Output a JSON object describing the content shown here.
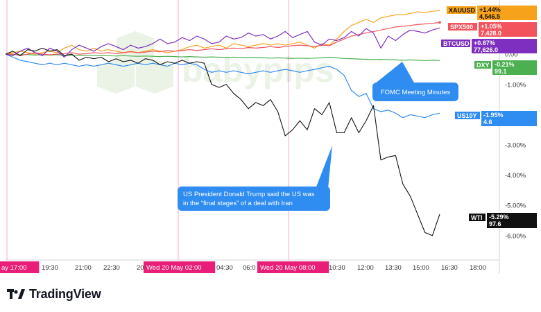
{
  "watermark": "babypips",
  "brand": "TradingView",
  "colors": {
    "xauusd": "#f7a21b",
    "spx500": "#f2535d",
    "btcusd": "#7e2fbf",
    "dxy": "#4caf50",
    "us10y": "#2f8cf0",
    "wti": "#111111",
    "session_marker": "#e91e78",
    "annotation": "#2f8cf0"
  },
  "chart_data": {
    "type": "line",
    "ylabel": "",
    "y_unit": "%",
    "y_ticks": [
      "0.00",
      "-1.00%",
      "-2.00%",
      "-3.00%",
      "-4.00%",
      "-5.00%",
      "-6.00%"
    ],
    "ylim": [
      -6.6,
      1.7
    ],
    "x_tick_labels": [
      "ay  17:00",
      "19:30",
      "21:00",
      "22:30",
      "20",
      "Wed 20 May  02:00",
      "04:30",
      "06:0",
      "Wed 20 May  08:00",
      "10:30",
      "12:00",
      "13:30",
      "15:00",
      "16:30",
      "18:00"
    ],
    "highlighted_x_labels": [
      "ay  17:00",
      "Wed 20 May  02:00",
      "Wed 20 May  08:00"
    ],
    "n_points": 60,
    "grid": false,
    "legend": "right-axis labels",
    "series": [
      {
        "name": "XAUUSD",
        "change": "+1.44%",
        "last": "4,546.5",
        "color_key": "xauusd",
        "values": [
          0,
          0.05,
          0.1,
          0.05,
          0,
          0.05,
          0.1,
          0.05,
          0.2,
          0.3,
          0.15,
          0.1,
          0.2,
          0.1,
          0.15,
          0.1,
          0.05,
          0.1,
          0.05,
          0.1,
          0.15,
          0.1,
          0.05,
          0.1,
          0.15,
          0.25,
          0.3,
          0.2,
          0.25,
          0.3,
          0.2,
          0.35,
          0.3,
          0.25,
          0.3,
          0.35,
          0.3,
          0.35,
          0.3,
          0.35,
          0.4,
          0.3,
          0.2,
          0.35,
          0.3,
          0.5,
          0.75,
          0.95,
          1.05,
          1.15,
          1.05,
          1.2,
          1.25,
          1.3,
          1.3,
          1.35,
          1.4,
          1.38,
          1.42,
          1.44
        ]
      },
      {
        "name": "SPX500",
        "change": "+1.05%",
        "last": "7,428.0",
        "color_key": "spx500",
        "values": [
          0,
          0,
          -0.05,
          0,
          0.05,
          0,
          -0.02,
          0,
          0.02,
          0.05,
          0,
          0.02,
          0.05,
          0.03,
          0.05,
          0.02,
          0.05,
          0.08,
          0.05,
          0.07,
          0.1,
          0.08,
          0.12,
          0.1,
          0.12,
          0.15,
          0.12,
          0.15,
          0.18,
          0.15,
          0.18,
          0.2,
          0.18,
          0.22,
          0.2,
          0.22,
          0.25,
          0.22,
          0.25,
          0.28,
          0.3,
          0.28,
          0.25,
          0.3,
          0.28,
          0.4,
          0.5,
          0.6,
          0.65,
          0.7,
          0.75,
          0.8,
          0.85,
          0.9,
          0.92,
          0.95,
          0.98,
          1.0,
          1.02,
          1.05
        ]
      },
      {
        "name": "BTCUSD",
        "change": "+0.87%",
        "last": "77,626.0",
        "color_key": "btcusd",
        "values": [
          0,
          -0.05,
          0.1,
          0.2,
          0.05,
          -0.05,
          0.2,
          0.1,
          -0.1,
          0.15,
          0.3,
          0.2,
          0.1,
          0.25,
          0.35,
          0.25,
          0.15,
          0.3,
          0.2,
          0.25,
          0.35,
          0.5,
          0.35,
          0.4,
          0.55,
          0.45,
          0.6,
          0.5,
          0.35,
          0.4,
          0.6,
          0.5,
          0.55,
          0.7,
          0.6,
          0.65,
          0.5,
          0.6,
          0.75,
          0.55,
          0.65,
          0.75,
          0.4,
          0.3,
          0.5,
          0.45,
          0.55,
          0.75,
          0.6,
          0.85,
          0.7,
          0.2,
          0.6,
          0.45,
          0.65,
          0.8,
          0.75,
          0.7,
          0.8,
          0.87
        ]
      },
      {
        "name": "DXY",
        "change": "-0.21%",
        "last": "99.1",
        "color_key": "dxy",
        "values": [
          0,
          -0.01,
          -0.02,
          -0.01,
          -0.03,
          -0.02,
          -0.03,
          -0.02,
          -0.04,
          -0.03,
          -0.04,
          -0.03,
          -0.05,
          -0.04,
          -0.05,
          -0.06,
          -0.05,
          -0.06,
          -0.07,
          -0.06,
          -0.07,
          -0.08,
          -0.07,
          -0.08,
          -0.09,
          -0.08,
          -0.09,
          -0.1,
          -0.09,
          -0.1,
          -0.11,
          -0.1,
          -0.11,
          -0.12,
          -0.11,
          -0.12,
          -0.13,
          -0.12,
          -0.13,
          -0.14,
          -0.13,
          -0.14,
          -0.13,
          -0.12,
          -0.1,
          -0.12,
          -0.14,
          -0.15,
          -0.16,
          -0.17,
          -0.18,
          -0.17,
          -0.18,
          -0.19,
          -0.2,
          -0.19,
          -0.2,
          -0.21,
          -0.2,
          -0.21
        ]
      },
      {
        "name": "US10Y",
        "change": "-1.95%",
        "last": "4.6",
        "color_key": "us10y",
        "values": [
          0,
          -0.1,
          -0.2,
          -0.25,
          -0.3,
          -0.35,
          -0.3,
          -0.35,
          -0.3,
          -0.35,
          -0.4,
          -0.35,
          -0.4,
          -0.35,
          -0.3,
          -0.35,
          -0.4,
          -0.35,
          -0.3,
          -0.35,
          -0.3,
          -0.35,
          -0.4,
          -0.3,
          -0.35,
          -0.3,
          -0.35,
          -0.5,
          -0.6,
          -0.55,
          -0.6,
          -0.55,
          -0.6,
          -0.65,
          -0.6,
          -0.55,
          -0.6,
          -0.55,
          -0.5,
          -0.55,
          -0.6,
          -0.55,
          -0.5,
          -0.45,
          -0.4,
          -0.5,
          -0.7,
          -1.2,
          -1.4,
          -1.3,
          -1.8,
          -1.9,
          -1.85,
          -1.95,
          -2.1,
          -2.0,
          -2.05,
          -2.1,
          -2.0,
          -1.95
        ]
      },
      {
        "name": "WTI",
        "change": "-5.29%",
        "last": "97.6",
        "color_key": "wti",
        "values": [
          0,
          0.1,
          -0.05,
          0.15,
          0.1,
          0.2,
          0.1,
          0.15,
          -0.05,
          0,
          -0.2,
          -0.1,
          -0.15,
          -0.1,
          -0.25,
          -0.15,
          -0.25,
          -0.2,
          -0.3,
          -0.15,
          -0.2,
          -0.35,
          -0.25,
          -0.3,
          -0.2,
          -0.3,
          -0.25,
          -0.3,
          -1.0,
          -1.1,
          -1.0,
          -1.3,
          -1.5,
          -1.8,
          -1.6,
          -1.7,
          -1.5,
          -1.9,
          -2.7,
          -2.5,
          -2.2,
          -2.5,
          -1.8,
          -2.0,
          -1.6,
          -2.6,
          -2.6,
          -2.1,
          -2.6,
          -2.2,
          -1.7,
          -3.5,
          -3.4,
          -3.35,
          -4.3,
          -4.7,
          -5.3,
          -5.9,
          -6.0,
          -5.29
        ]
      }
    ],
    "annotations": [
      {
        "text": "FOMC Meeting Minutes"
      },
      {
        "text_lines": [
          "US President Donald Trump said the US was",
          "in the “final stages” of a deal with Iran"
        ]
      }
    ]
  }
}
